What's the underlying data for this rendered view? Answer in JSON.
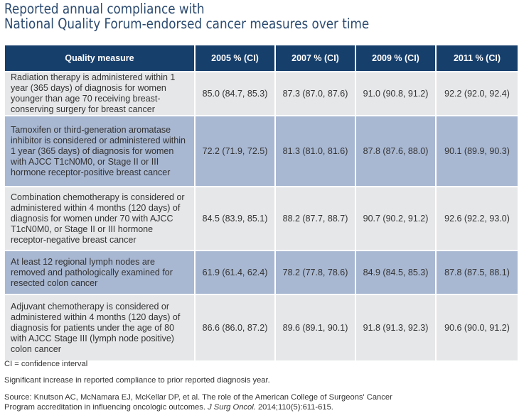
{
  "title": {
    "line1": "Reported annual compliance with",
    "line2": "National Quality Forum-endorsed cancer measures over time"
  },
  "table": {
    "headers": [
      "Quality measure",
      "2005 % (CI)",
      "2007 % (CI)",
      "2009 % (CI)",
      "2011 % (CI)"
    ],
    "rows": [
      {
        "measure": "Radiation therapy is administered within 1 year (365 days) of diagnosis for women younger than age 70 receiving breast-conserving surgery for breast cancer",
        "values": [
          "85.0 (84.7, 85.3)",
          "87.3 (87.0, 87.6)",
          "91.0 (90.8, 91.2)",
          "92.2 (92.0, 92.4)"
        ]
      },
      {
        "measure": "Tamoxifen or third-generation aromatase inhibitor is considered or administered within 1 year (365 days) of diagnosis for women with AJCC T1cN0M0, or Stage II or III hormone receptor-positive breast cancer",
        "values": [
          "72.2 (71.9, 72.5)",
          "81.3 (81.0, 81.6)",
          "87.8 (87.6, 88.0)",
          "90.1 (89.9, 90.3)"
        ]
      },
      {
        "measure": "Combination chemotherapy is considered or administered within 4 months (120 days) of diagnosis for women under 70 with AJCC T1cN0M0, or Stage II or III hormone receptor-negative breast cancer",
        "values": [
          "84.5 (83.9, 85.1)",
          "88.2 (87.7, 88.7)",
          "90.7 (90.2, 91.2)",
          "92.6 (92.2, 93.0)"
        ]
      },
      {
        "measure": "At least 12 regional lymph nodes are removed and pathologically examined for resected colon cancer",
        "values": [
          "61.9 (61.4, 62.4)",
          "78.2 (77.8, 78.6)",
          "84.9 (84.5, 85.3)",
          "87.8 (87.5, 88.1)"
        ]
      },
      {
        "measure": "Adjuvant chemotherapy is considered or administered within 4 months (120 days) of diagnosis for patients under the age of 80 with AJCC Stage III (lymph node positive) colon cancer",
        "values": [
          "86.6 (86.0, 87.2)",
          "89.6 (89.1, 90.1)",
          "91.8 (91.3, 92.3)",
          "90.6 (90.0, 91.2)"
        ]
      }
    ]
  },
  "notes": {
    "ci": "CI = confidence interval",
    "significance": "Significant increase in reported compliance to prior reported diagnosis year.",
    "source_line1": "Source: Knutson AC, McNamara EJ, McKellar DP, et al. The role of the American College of Surgeons' Cancer",
    "source_line2a": "Program accreditation in influencing oncologic outcomes. ",
    "source_journal": "J Surg Oncol.",
    "source_line2b": " 2014;110(5):611-615."
  },
  "colors": {
    "header": "#173f6c",
    "row_gray": "#e6e7e9",
    "row_blue": "#a9b8d2",
    "title": "#2b4a6f"
  }
}
